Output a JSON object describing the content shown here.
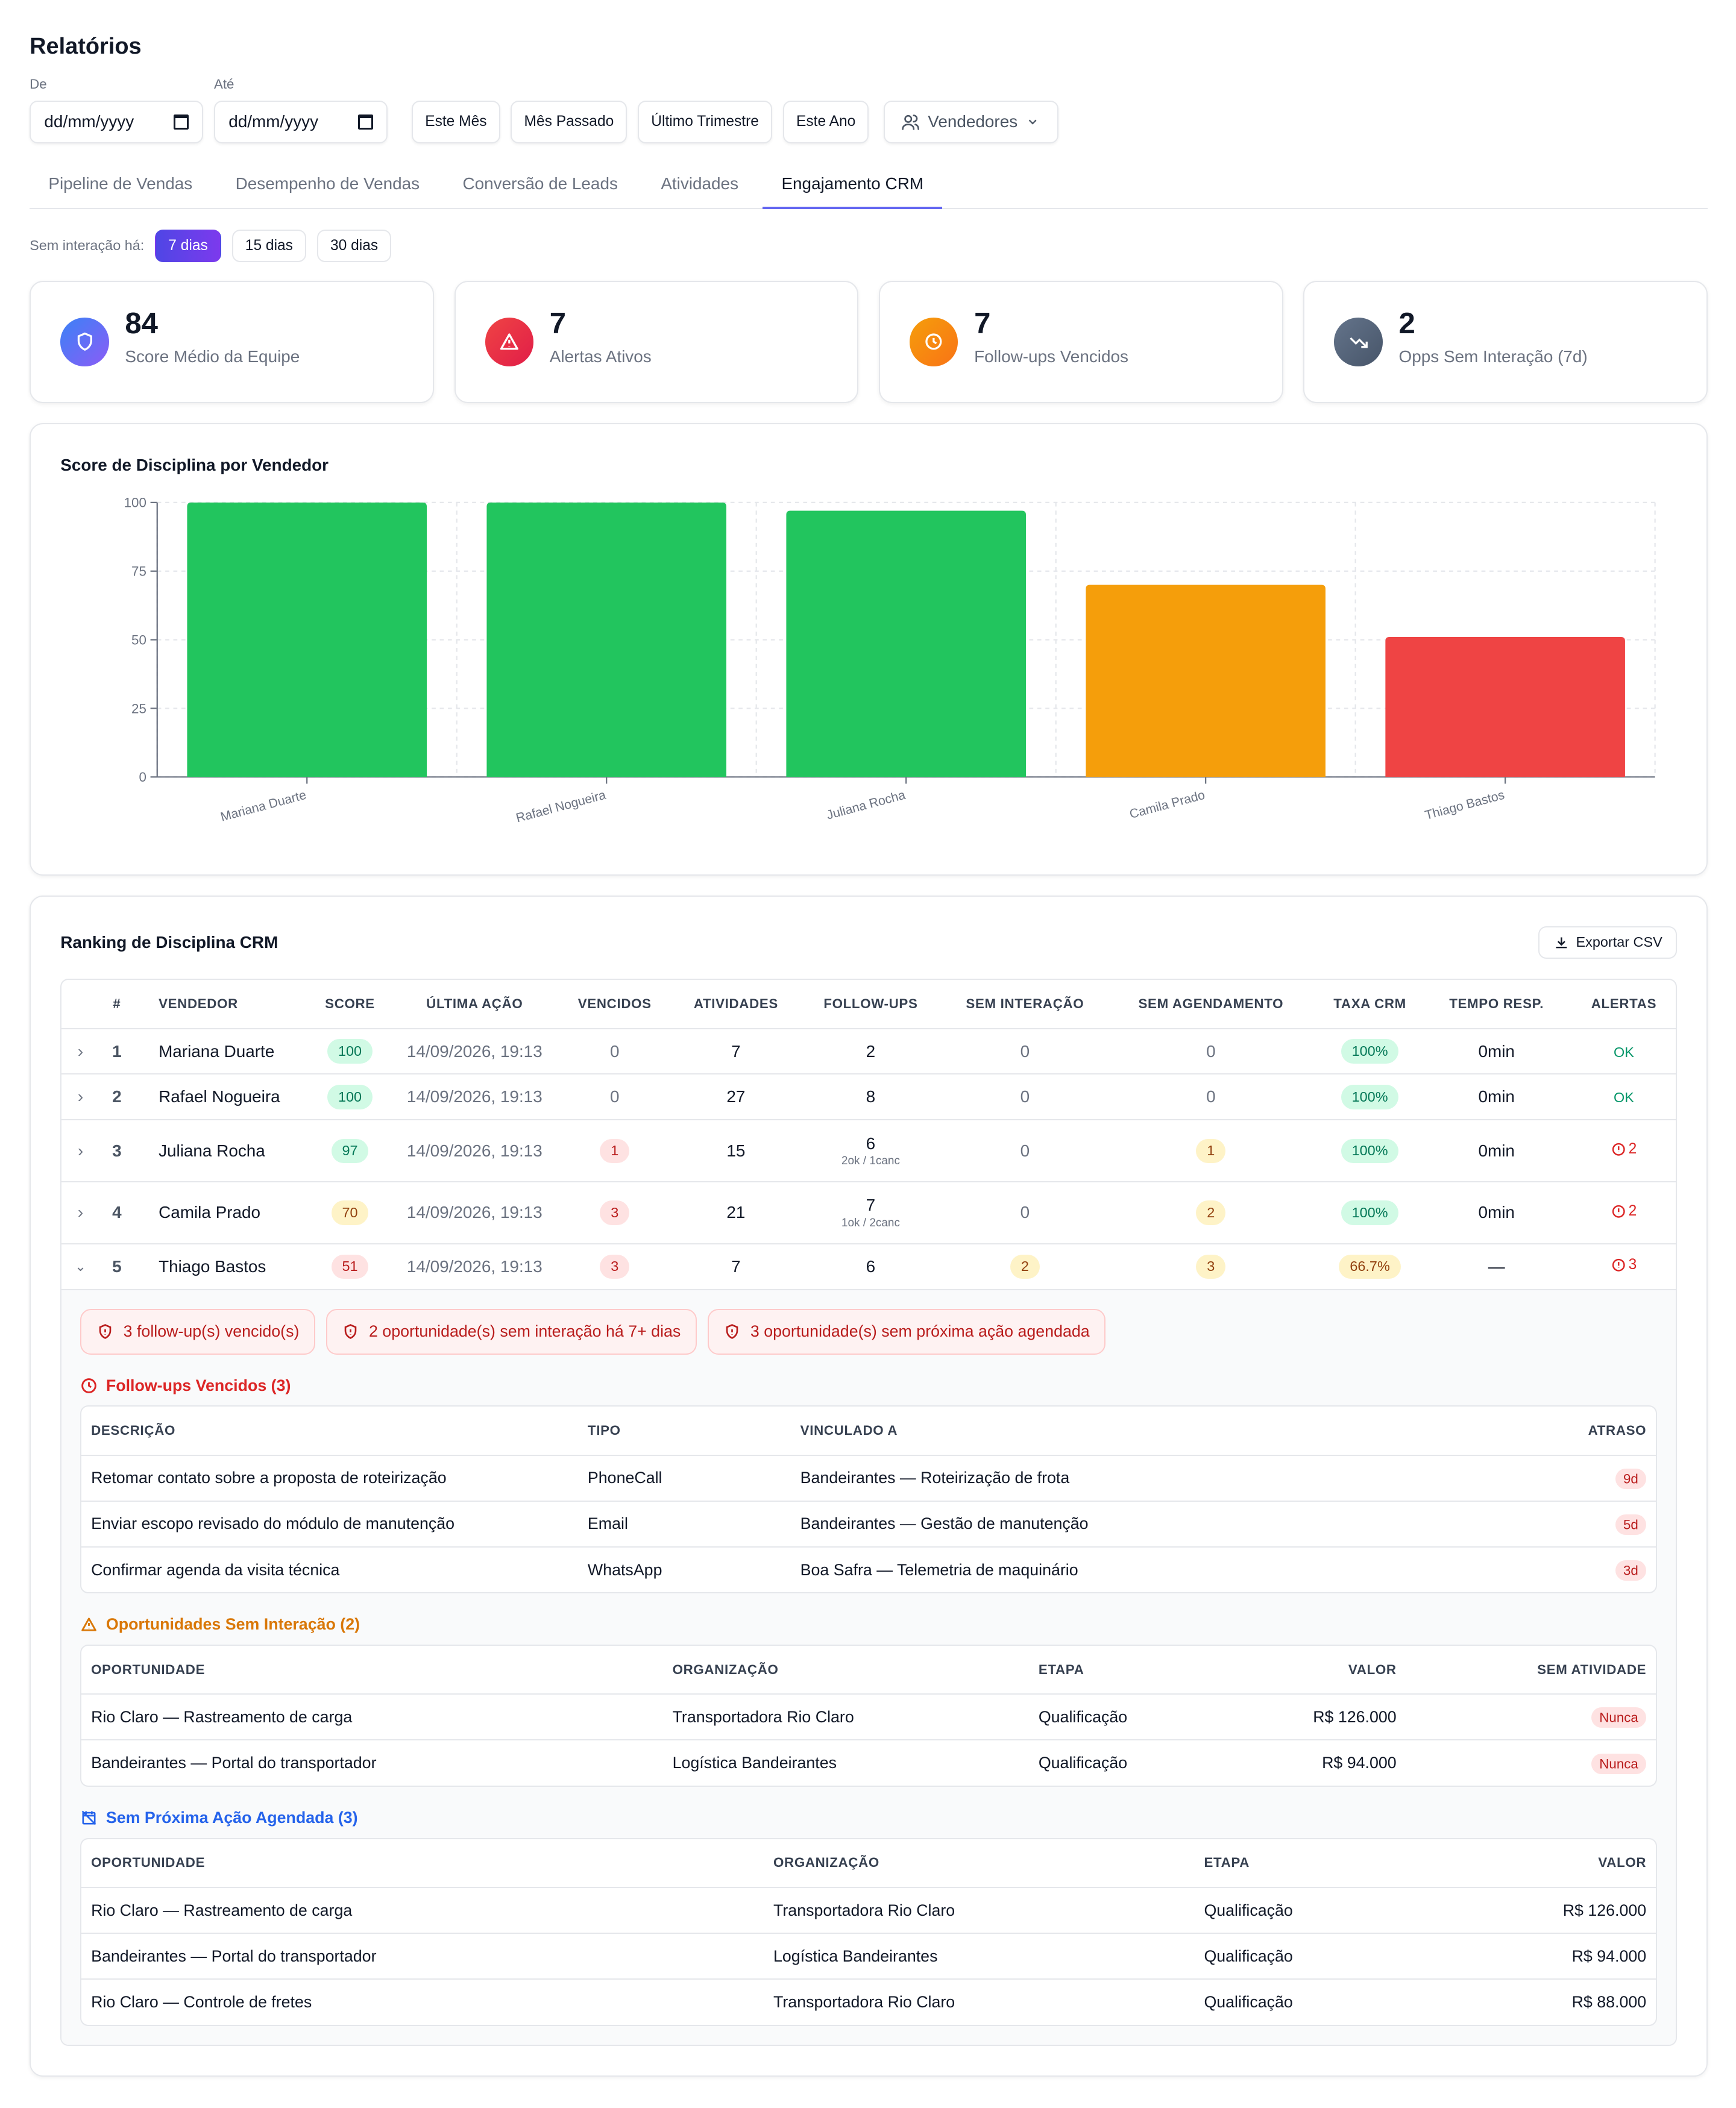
{
  "page": {
    "title": "Relatórios"
  },
  "filters": {
    "from_label": "De",
    "to_label": "Até",
    "date_placeholder": "dd/mm/yyyy",
    "presets": [
      "Este Mês",
      "Mês Passado",
      "Último Trimestre",
      "Este Ano"
    ],
    "sellers_label": "Vendedores"
  },
  "tabs": [
    "Pipeline de Vendas",
    "Desempenho de Vendas",
    "Conversão de Leads",
    "Atividades",
    "Engajamento CRM"
  ],
  "active_tab": "Engajamento CRM",
  "no_interaction": {
    "label": "Sem interação há:",
    "options": [
      "7 dias",
      "15 dias",
      "30 dias"
    ],
    "selected": "7 dias"
  },
  "kpis": [
    {
      "value": "84",
      "label": "Score Médio da Equipe",
      "icon": "shield-icon",
      "color": "#6366f1"
    },
    {
      "value": "7",
      "label": "Alertas Ativos",
      "icon": "alert-triangle-icon",
      "color": "#ef4444"
    },
    {
      "value": "7",
      "label": "Follow-ups Vencidos",
      "icon": "clock-icon",
      "color": "#f97316"
    },
    {
      "value": "2",
      "label": "Opps Sem Interação (7d)",
      "icon": "trending-down-icon",
      "color": "#64748b"
    }
  ],
  "chart": {
    "title": "Score de Disciplina por Vendedor"
  },
  "chart_data": {
    "type": "bar",
    "categories": [
      "Mariana Duarte",
      "Rafael Nogueira",
      "Juliana Rocha",
      "Camila Prado",
      "Thiago Bastos"
    ],
    "values": [
      100,
      100,
      97,
      70,
      51
    ],
    "colors": [
      "#22c55e",
      "#22c55e",
      "#22c55e",
      "#f59e0b",
      "#ef4444"
    ],
    "ylim": [
      0,
      100
    ],
    "yticks": [
      0,
      25,
      50,
      75,
      100
    ],
    "grid": true
  },
  "ranking": {
    "title": "Ranking de Disciplina CRM",
    "export_label": "Exportar CSV",
    "columns": [
      "#",
      "VENDEDOR",
      "SCORE",
      "ÚLTIMA AÇÃO",
      "VENCIDOS",
      "ATIVIDADES",
      "FOLLOW-UPS",
      "SEM INTERAÇÃO",
      "SEM AGENDAMENTO",
      "TAXA CRM",
      "TEMPO RESP.",
      "ALERTAS"
    ],
    "rows": [
      {
        "rank": "1",
        "name": "Mariana Duarte",
        "score": "100",
        "last": "14/09/2026, 19:13",
        "overdue": "0",
        "activities": "7",
        "followups": "2",
        "followups_sub": "",
        "no_interaction": "0",
        "no_schedule": "0",
        "rate": "100%",
        "resp": "0min",
        "alerts": "OK"
      },
      {
        "rank": "2",
        "name": "Rafael Nogueira",
        "score": "100",
        "last": "14/09/2026, 19:13",
        "overdue": "0",
        "activities": "27",
        "followups": "8",
        "followups_sub": "",
        "no_interaction": "0",
        "no_schedule": "0",
        "rate": "100%",
        "resp": "0min",
        "alerts": "OK"
      },
      {
        "rank": "3",
        "name": "Juliana Rocha",
        "score": "97",
        "last": "14/09/2026, 19:13",
        "overdue": "1",
        "activities": "15",
        "followups": "6",
        "followups_sub": "2ok / 1canc",
        "no_interaction": "0",
        "no_schedule": "1",
        "rate": "100%",
        "resp": "0min",
        "alerts": "2"
      },
      {
        "rank": "4",
        "name": "Camila Prado",
        "score": "70",
        "last": "14/09/2026, 19:13",
        "overdue": "3",
        "activities": "21",
        "followups": "7",
        "followups_sub": "1ok / 2canc",
        "no_interaction": "0",
        "no_schedule": "2",
        "rate": "100%",
        "resp": "0min",
        "alerts": "2"
      },
      {
        "rank": "5",
        "name": "Thiago Bastos",
        "score": "51",
        "last": "14/09/2026, 19:13",
        "overdue": "3",
        "activities": "7",
        "followups": "6",
        "followups_sub": "",
        "no_interaction": "2",
        "no_schedule": "3",
        "rate": "66.7%",
        "resp": "—",
        "alerts": "3"
      }
    ]
  },
  "details": {
    "alerts": [
      "3 follow-up(s) vencido(s)",
      "2 oportunidade(s) sem interação há 7+ dias",
      "3 oportunidade(s) sem próxima ação agendada"
    ],
    "overdue": {
      "title": "Follow-ups Vencidos (3)",
      "columns": [
        "DESCRIÇÃO",
        "TIPO",
        "VINCULADO A",
        "ATRASO"
      ],
      "rows": [
        [
          "Retomar contato sobre a proposta de roteirização",
          "PhoneCall",
          "Bandeirantes — Roteirização de frota",
          "9d"
        ],
        [
          "Enviar escopo revisado do módulo de manutenção",
          "Email",
          "Bandeirantes — Gestão de manutenção",
          "5d"
        ],
        [
          "Confirmar agenda da visita técnica",
          "WhatsApp",
          "Boa Safra — Telemetria de maquinário",
          "3d"
        ]
      ]
    },
    "no_interaction": {
      "title": "Oportunidades Sem Interação (2)",
      "columns": [
        "OPORTUNIDADE",
        "ORGANIZAÇÃO",
        "ETAPA",
        "VALOR",
        "SEM ATIVIDADE"
      ],
      "rows": [
        [
          "Rio Claro — Rastreamento de carga",
          "Transportadora Rio Claro",
          "Qualificação",
          "R$ 126.000",
          "Nunca"
        ],
        [
          "Bandeirantes — Portal do transportador",
          "Logística Bandeirantes",
          "Qualificação",
          "R$ 94.000",
          "Nunca"
        ]
      ]
    },
    "no_schedule": {
      "title": "Sem Próxima Ação Agendada (3)",
      "columns": [
        "OPORTUNIDADE",
        "ORGANIZAÇÃO",
        "ETAPA",
        "VALOR"
      ],
      "rows": [
        [
          "Rio Claro — Rastreamento de carga",
          "Transportadora Rio Claro",
          "Qualificação",
          "R$ 126.000"
        ],
        [
          "Bandeirantes — Portal do transportador",
          "Logística Bandeirantes",
          "Qualificação",
          "R$ 94.000"
        ],
        [
          "Rio Claro — Controle de fretes",
          "Transportadora Rio Claro",
          "Qualificação",
          "R$ 88.000"
        ]
      ]
    }
  }
}
